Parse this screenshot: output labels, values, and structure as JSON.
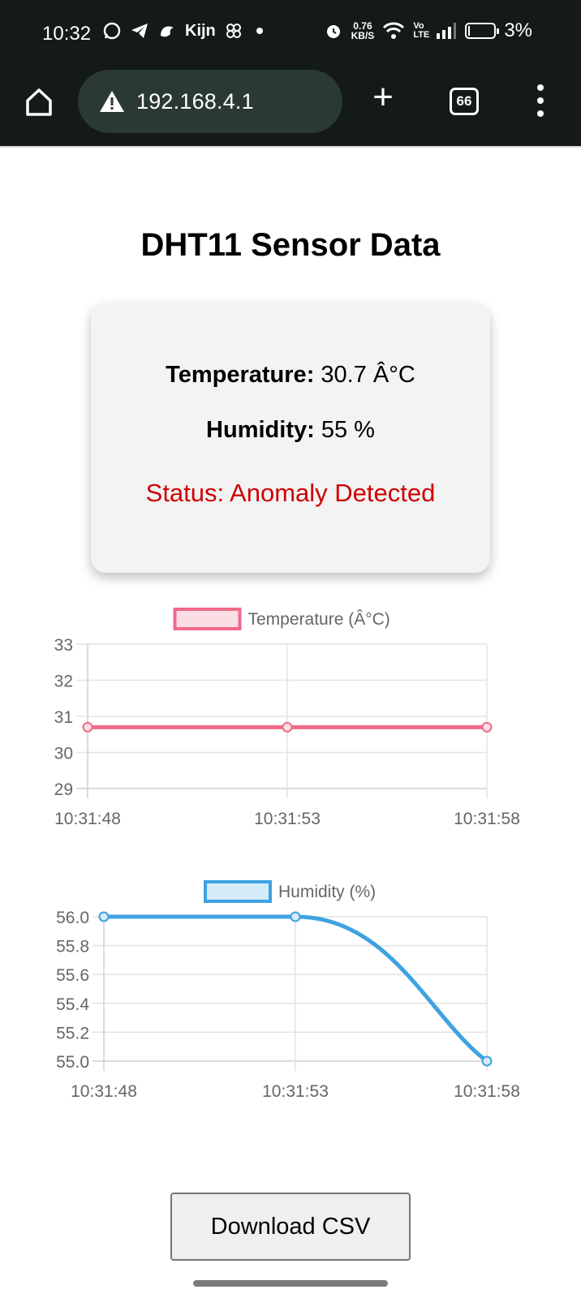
{
  "statusbar": {
    "time": "10:32",
    "apps_text": "Kijn",
    "net_speed_value": "0.76",
    "net_speed_unit": "KB/S",
    "volte": "Vo LTE",
    "battery": "3%",
    "battery_level_percent": 3
  },
  "browser": {
    "url": "192.168.4.1",
    "tab_count": "66"
  },
  "page": {
    "title": "DHT11 Sensor Data",
    "temperature_label": "Temperature:",
    "temperature_value": "30.7 Â°C",
    "humidity_label": "Humidity:",
    "humidity_value": "55 %",
    "status": "Status: Anomaly Detected",
    "status_color": "#d00000",
    "download_label": "Download CSV"
  },
  "chart_data": [
    {
      "type": "line",
      "title": "",
      "legend": "Temperature (Â°C)",
      "legend_placement": "top-center",
      "x": [
        "10:31:48",
        "10:31:53",
        "10:31:58"
      ],
      "series": [
        {
          "name": "Temperature (Â°C)",
          "values": [
            30.7,
            30.7,
            30.7
          ]
        }
      ],
      "yticks": [
        "33",
        "32",
        "31",
        "30",
        "29"
      ],
      "ylim": [
        29,
        33
      ],
      "grid": true,
      "line_color": "#f06a8a",
      "fill_color": "#fbdde4"
    },
    {
      "type": "line",
      "title": "",
      "legend": "Humidity (%)",
      "legend_placement": "top-center",
      "x": [
        "10:31:48",
        "10:31:53",
        "10:31:58"
      ],
      "series": [
        {
          "name": "Humidity (%)",
          "values": [
            56,
            56,
            55
          ]
        }
      ],
      "yticks": [
        "56.0",
        "55.8",
        "55.6",
        "55.4",
        "55.2",
        "55.0"
      ],
      "ylim": [
        55,
        56
      ],
      "grid": true,
      "line_color": "#3ea2e0",
      "fill_color": "#d6ebf8"
    }
  ]
}
